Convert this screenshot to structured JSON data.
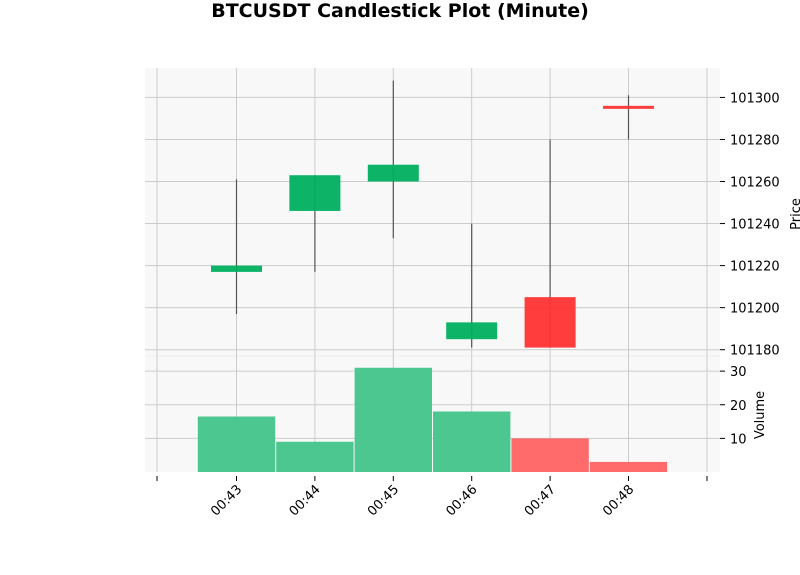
{
  "chart_data": {
    "type": "candlestick",
    "title": "BTCUSDT Candlestick Plot (Minute)",
    "x_labels": [
      "00:43",
      "00:44",
      "00:45",
      "00:46",
      "00:47",
      "00:48"
    ],
    "candles": [
      {
        "time": "00:43",
        "open": 101217,
        "high": 101261,
        "low": 101197,
        "close": 101220
      },
      {
        "time": "00:44",
        "open": 101246,
        "high": 101263,
        "low": 101217,
        "close": 101263
      },
      {
        "time": "00:45",
        "open": 101260,
        "high": 101308,
        "low": 101233,
        "close": 101268
      },
      {
        "time": "00:46",
        "open": 101185,
        "high": 101240,
        "low": 101181,
        "close": 101193
      },
      {
        "time": "00:47",
        "open": 101205,
        "high": 101280,
        "low": 101181,
        "close": 101181
      },
      {
        "time": "00:48",
        "open": 101296,
        "high": 101301,
        "low": 101280,
        "close": 101295
      }
    ],
    "volume": [
      16.5,
      9,
      31,
      18,
      10,
      3
    ],
    "price_axis": {
      "label": "Price",
      "ylim": [
        101177,
        101314
      ],
      "ticks": [
        101180,
        101200,
        101220,
        101240,
        101260,
        101280,
        101300
      ],
      "tick_labels": [
        "101180",
        "101200",
        "101220",
        "101240",
        "101260",
        "101280",
        "101300"
      ],
      "position": "right"
    },
    "volume_axis": {
      "label": "Volume",
      "ylim": [
        0,
        34.5
      ],
      "ticks": [
        10,
        20,
        30
      ],
      "tick_labels": [
        "10",
        "20",
        "30"
      ],
      "position": "right"
    },
    "grid": true,
    "colors": {
      "up": "#00b060",
      "down": "#ff3333",
      "volume_up": "#4cc790",
      "volume_down": "#ff6b6b",
      "wick": "#555555",
      "grid": "#cccccc",
      "panel_background": "#f8f8f8"
    }
  }
}
